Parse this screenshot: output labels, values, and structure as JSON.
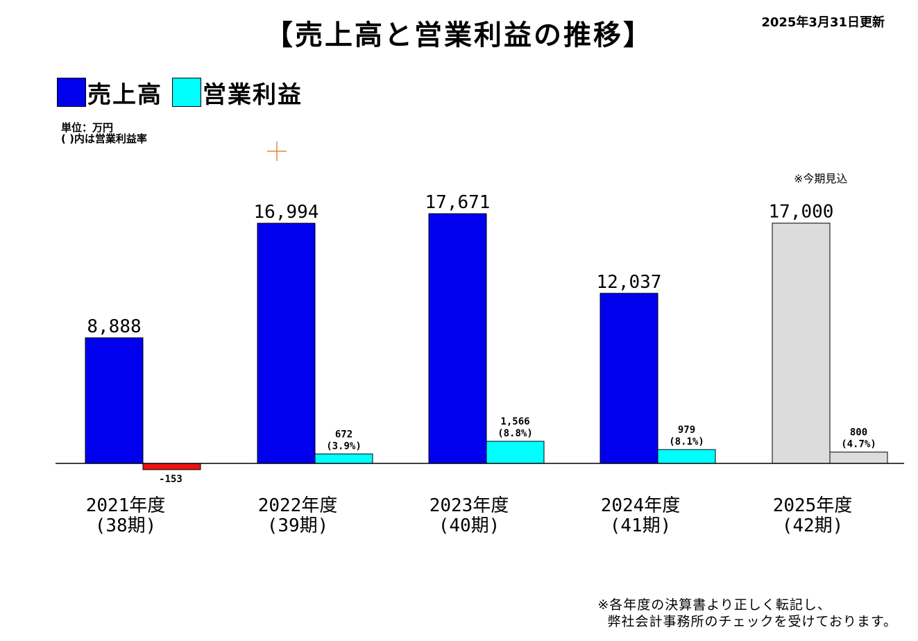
{
  "header": {
    "title": "【売上高と営業利益の推移】",
    "updated": "2025年3月31日更新"
  },
  "legend": [
    {
      "label": "売上高",
      "color": "#0000ee"
    },
    {
      "label": "営業利益",
      "color": "#00ffff"
    }
  ],
  "notes": {
    "unit_line1": "単位：万円",
    "unit_line2": "( )内は営業利益率",
    "forecast_note": "※今期見込",
    "footnote_line1": "※各年度の決算書より正しく転記し、",
    "footnote_line2": "  弊社会計事務所のチェックを受けております。"
  },
  "colors": {
    "sales": "#0000ee",
    "profit": "#00ffff",
    "negative": "#ee1111",
    "forecast": "#dcdcdc",
    "axis": "#000000"
  },
  "chart_data": {
    "type": "bar",
    "title": "【売上高と営業利益の推移】",
    "unit": "万円",
    "categories": [
      {
        "year": "2021年度",
        "period": "(38期)"
      },
      {
        "year": "2022年度",
        "period": "(39期)"
      },
      {
        "year": "2023年度",
        "period": "(40期)"
      },
      {
        "year": "2024年度",
        "period": "(41期)"
      },
      {
        "year": "2025年度",
        "period": "(42期)"
      }
    ],
    "series": [
      {
        "name": "売上高",
        "values": [
          8888,
          16994,
          17671,
          12037,
          17000
        ],
        "labels": [
          "8,888",
          "16,994",
          "17,671",
          "12,037",
          "17,000"
        ]
      },
      {
        "name": "営業利益",
        "values": [
          -153,
          672,
          1566,
          979,
          800
        ],
        "labels": [
          "-153",
          "672",
          "1,566",
          "979",
          "800"
        ],
        "margins": [
          "",
          "(3.9%)",
          "(8.8%)",
          "(8.1%)",
          "(4.7%)"
        ]
      }
    ],
    "forecast_index": 4,
    "ylim": [
      -500,
      19000
    ],
    "grid": false
  }
}
